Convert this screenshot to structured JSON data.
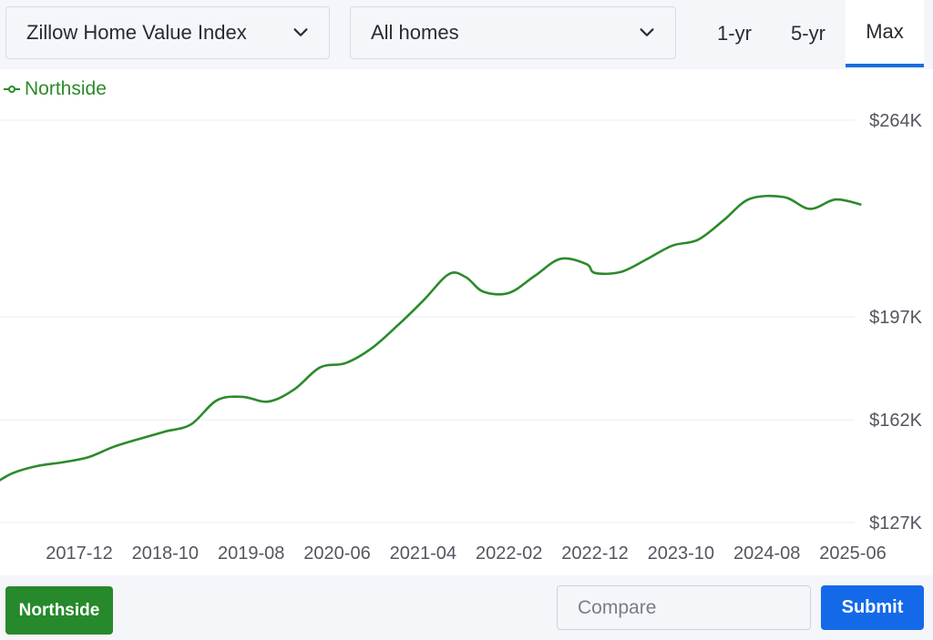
{
  "controls": {
    "metric_select": "Zillow Home Value Index",
    "home_type_select": "All homes",
    "range_tabs": [
      "1-yr",
      "5-yr",
      "Max"
    ],
    "active_range": "Max"
  },
  "legend": {
    "series_name": "Northside",
    "color": "#2c8a2c"
  },
  "footer": {
    "region_button": "Northside",
    "compare_placeholder": "Compare",
    "submit_label": "Submit",
    "region_color": "#26892b",
    "submit_color": "#1469e8"
  },
  "chart_data": {
    "type": "line",
    "title": "",
    "xlabel": "",
    "ylabel": "",
    "x_ticks": [
      "2017-12",
      "2018-10",
      "2019-08",
      "2020-06",
      "2021-04",
      "2022-02",
      "2022-12",
      "2023-10",
      "2024-08",
      "2025-06"
    ],
    "y_ticks": [
      "$127K",
      "$162K",
      "$197K",
      "$264K"
    ],
    "y_tick_values": [
      127000,
      162000,
      197000,
      264000
    ],
    "ylim": [
      127000,
      264000
    ],
    "grid": "horizontal",
    "legend_position": "top-left",
    "series": [
      {
        "name": "Northside",
        "color": "#2c8a2c",
        "points": [
          [
            "2017-01",
            138000
          ],
          [
            "2017-04",
            143500
          ],
          [
            "2017-07",
            146200
          ],
          [
            "2017-10",
            147500
          ],
          [
            "2018-01",
            149200
          ],
          [
            "2018-04",
            152800
          ],
          [
            "2018-07",
            155500
          ],
          [
            "2018-10",
            158000
          ],
          [
            "2019-01",
            160400
          ],
          [
            "2019-04",
            168600
          ],
          [
            "2019-07",
            169800
          ],
          [
            "2019-10",
            168200
          ],
          [
            "2020-01",
            172300
          ],
          [
            "2020-04",
            179800
          ],
          [
            "2020-07",
            181300
          ],
          [
            "2020-10",
            186300
          ],
          [
            "2021-01",
            194000
          ],
          [
            "2021-04",
            202500
          ],
          [
            "2021-07",
            211600
          ],
          [
            "2021-09",
            210500
          ],
          [
            "2021-11",
            205600
          ],
          [
            "2022-02",
            205200
          ],
          [
            "2022-05",
            211000
          ],
          [
            "2022-08",
            216800
          ],
          [
            "2022-11",
            215000
          ],
          [
            "2022-12",
            212000
          ],
          [
            "2023-03",
            212300
          ],
          [
            "2023-06",
            216600
          ],
          [
            "2023-09",
            221300
          ],
          [
            "2023-12",
            223300
          ],
          [
            "2024-03",
            230000
          ],
          [
            "2024-06",
            237200
          ],
          [
            "2024-10",
            237800
          ],
          [
            "2025-01",
            233800
          ],
          [
            "2025-04",
            237000
          ],
          [
            "2025-07",
            235200
          ]
        ]
      }
    ]
  }
}
